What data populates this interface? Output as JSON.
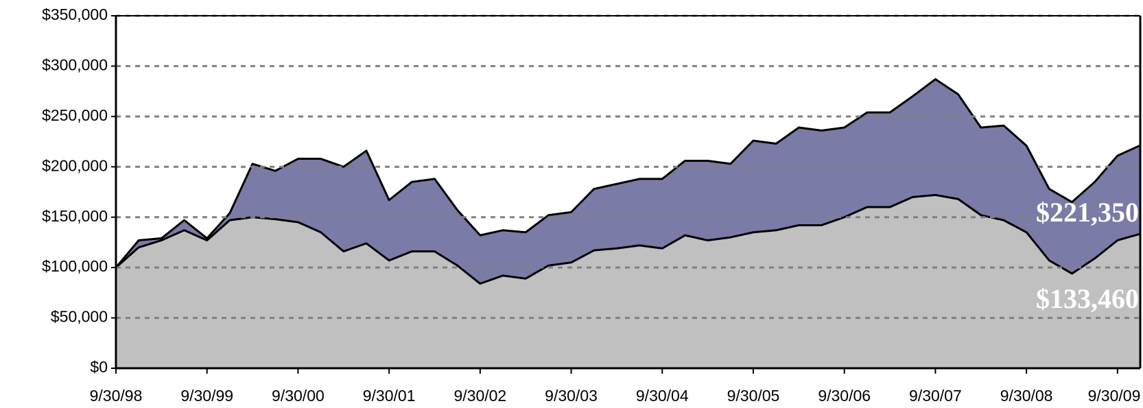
{
  "chart_data": {
    "type": "area",
    "categories": [
      "9/30/98",
      null,
      null,
      null,
      "9/30/99",
      null,
      null,
      null,
      "9/30/00",
      null,
      null,
      null,
      "9/30/01",
      null,
      null,
      null,
      "9/30/02",
      null,
      null,
      null,
      "9/30/03",
      null,
      null,
      null,
      "9/30/04",
      null,
      null,
      null,
      "9/30/05",
      null,
      null,
      null,
      "9/30/06",
      null,
      null,
      null,
      "9/30/07",
      null,
      null,
      null,
      "9/30/08",
      null,
      null,
      null,
      "9/30/09",
      null
    ],
    "series": [
      {
        "color": "#7b7ba8",
        "values": [
          100000,
          127000,
          129000,
          147000,
          129000,
          154000,
          203000,
          196000,
          208000,
          208000,
          200000,
          216000,
          167000,
          185000,
          188000,
          157000,
          132000,
          137000,
          135000,
          152000,
          155000,
          178000,
          183000,
          188000,
          188000,
          206000,
          206000,
          203000,
          226000,
          223000,
          239000,
          236000,
          239000,
          254000,
          254000,
          270000,
          287000,
          272000,
          239000,
          241000,
          221000,
          178000,
          165000,
          185000,
          211000,
          221350
        ],
        "value_labels": [
          null,
          null,
          null,
          null,
          null,
          null,
          null,
          null,
          null,
          null,
          null,
          null,
          null,
          null,
          null,
          null,
          null,
          null,
          null,
          null,
          null,
          null,
          null,
          null,
          null,
          null,
          null,
          null,
          null,
          null,
          null,
          null,
          null,
          null,
          null,
          null,
          null,
          null,
          null,
          null,
          null,
          null,
          null,
          null,
          null,
          "$221,350"
        ]
      },
      {
        "color": "#c0c0c0",
        "values": [
          100000,
          120000,
          127000,
          137000,
          127000,
          147000,
          150000,
          148000,
          145000,
          135000,
          116000,
          124000,
          107000,
          116000,
          116000,
          102000,
          84000,
          92000,
          89000,
          102000,
          105000,
          117000,
          119000,
          122000,
          119000,
          132000,
          127000,
          130000,
          135000,
          137000,
          142000,
          142000,
          150000,
          160000,
          160000,
          170000,
          172000,
          168000,
          152000,
          147000,
          135000,
          107000,
          94000,
          109000,
          127000,
          133460
        ],
        "value_labels": [
          null,
          null,
          null,
          null,
          null,
          null,
          null,
          null,
          null,
          null,
          null,
          null,
          null,
          null,
          null,
          null,
          null,
          null,
          null,
          null,
          null,
          null,
          null,
          null,
          null,
          null,
          null,
          null,
          null,
          null,
          null,
          null,
          null,
          null,
          null,
          null,
          null,
          null,
          null,
          null,
          null,
          null,
          null,
          null,
          null,
          "$133,460"
        ]
      }
    ],
    "ylim": [
      0,
      350000
    ],
    "yticks": [
      {
        "value": 0,
        "label": "$0"
      },
      {
        "value": 50000,
        "label": "$50,000"
      },
      {
        "value": 100000,
        "label": "$100,000"
      },
      {
        "value": 150000,
        "label": "$150,000"
      },
      {
        "value": 200000,
        "label": "$200,000"
      },
      {
        "value": 250000,
        "label": "$250,000"
      },
      {
        "value": 300000,
        "label": "$300,000"
      },
      {
        "value": 350000,
        "label": "$350,000"
      }
    ],
    "grid": true
  }
}
